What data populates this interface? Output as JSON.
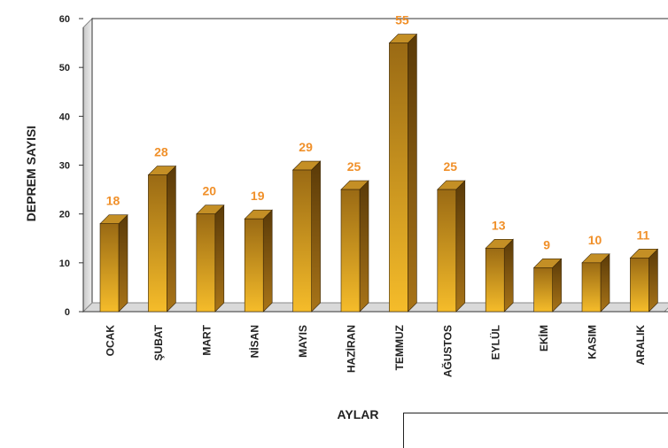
{
  "chart_data": {
    "type": "bar",
    "categories": [
      "OCAK",
      "ŞUBAT",
      "MART",
      "NİSAN",
      "MAYIS",
      "HAZİRAN",
      "TEMMUZ",
      "AĞUSTOS",
      "EYLÜL",
      "EKİM",
      "KASIM",
      "ARALIK"
    ],
    "values": [
      18,
      28,
      20,
      19,
      29,
      25,
      55,
      25,
      13,
      9,
      10,
      11
    ],
    "xlabel": "AYLAR",
    "ylabel": "DEPREM SAYISI",
    "ylim": [
      0,
      60
    ],
    "yticks": [
      "0",
      "10",
      "20",
      "30",
      "40",
      "50",
      "60"
    ],
    "grid": false,
    "style": "3d-bar",
    "colors": {
      "bar_light": "#F5BC2A",
      "bar_dark": "#9A6A14",
      "bar_side": "#6E4A0C",
      "bar_top": "#C48F25",
      "data_label": "#F0902A",
      "back_wall": "#FFFFFF",
      "floor": "#D9D9D9"
    }
  }
}
